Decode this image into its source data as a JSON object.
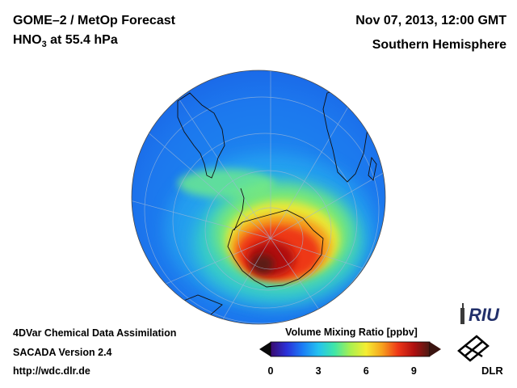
{
  "header": {
    "title": "GOME–2 / MetOp Forecast",
    "species_main": "HNO",
    "species_sub": "3",
    "species_rest": " at 55.4 hPa",
    "datetime": "Nov 07, 2013, 12:00 GMT",
    "region": "Southern Hemisphere"
  },
  "footer": {
    "line1": "4DVar Chemical Data Assimilation",
    "line2": "SACADA Version 2.4",
    "line3": "http://wdc.dlr.de"
  },
  "colorbar": {
    "title": "Volume Mixing Ratio [ppbv]",
    "min": 0,
    "max": 10,
    "ticks": [
      "0",
      "3",
      "6",
      "9"
    ],
    "tick_values": [
      0,
      3,
      6,
      9
    ],
    "colors": [
      "#3a0a6e",
      "#2b30d8",
      "#1b7cf5",
      "#23c2f0",
      "#3ee6a8",
      "#a8f050",
      "#f5ee32",
      "#f7a21e",
      "#ee3818",
      "#b01010",
      "#4a1a14"
    ]
  },
  "logos": {
    "riu_text": "RIU",
    "dlr_text": "DLR"
  },
  "map": {
    "projection": "orthographic",
    "hemisphere": "south"
  }
}
